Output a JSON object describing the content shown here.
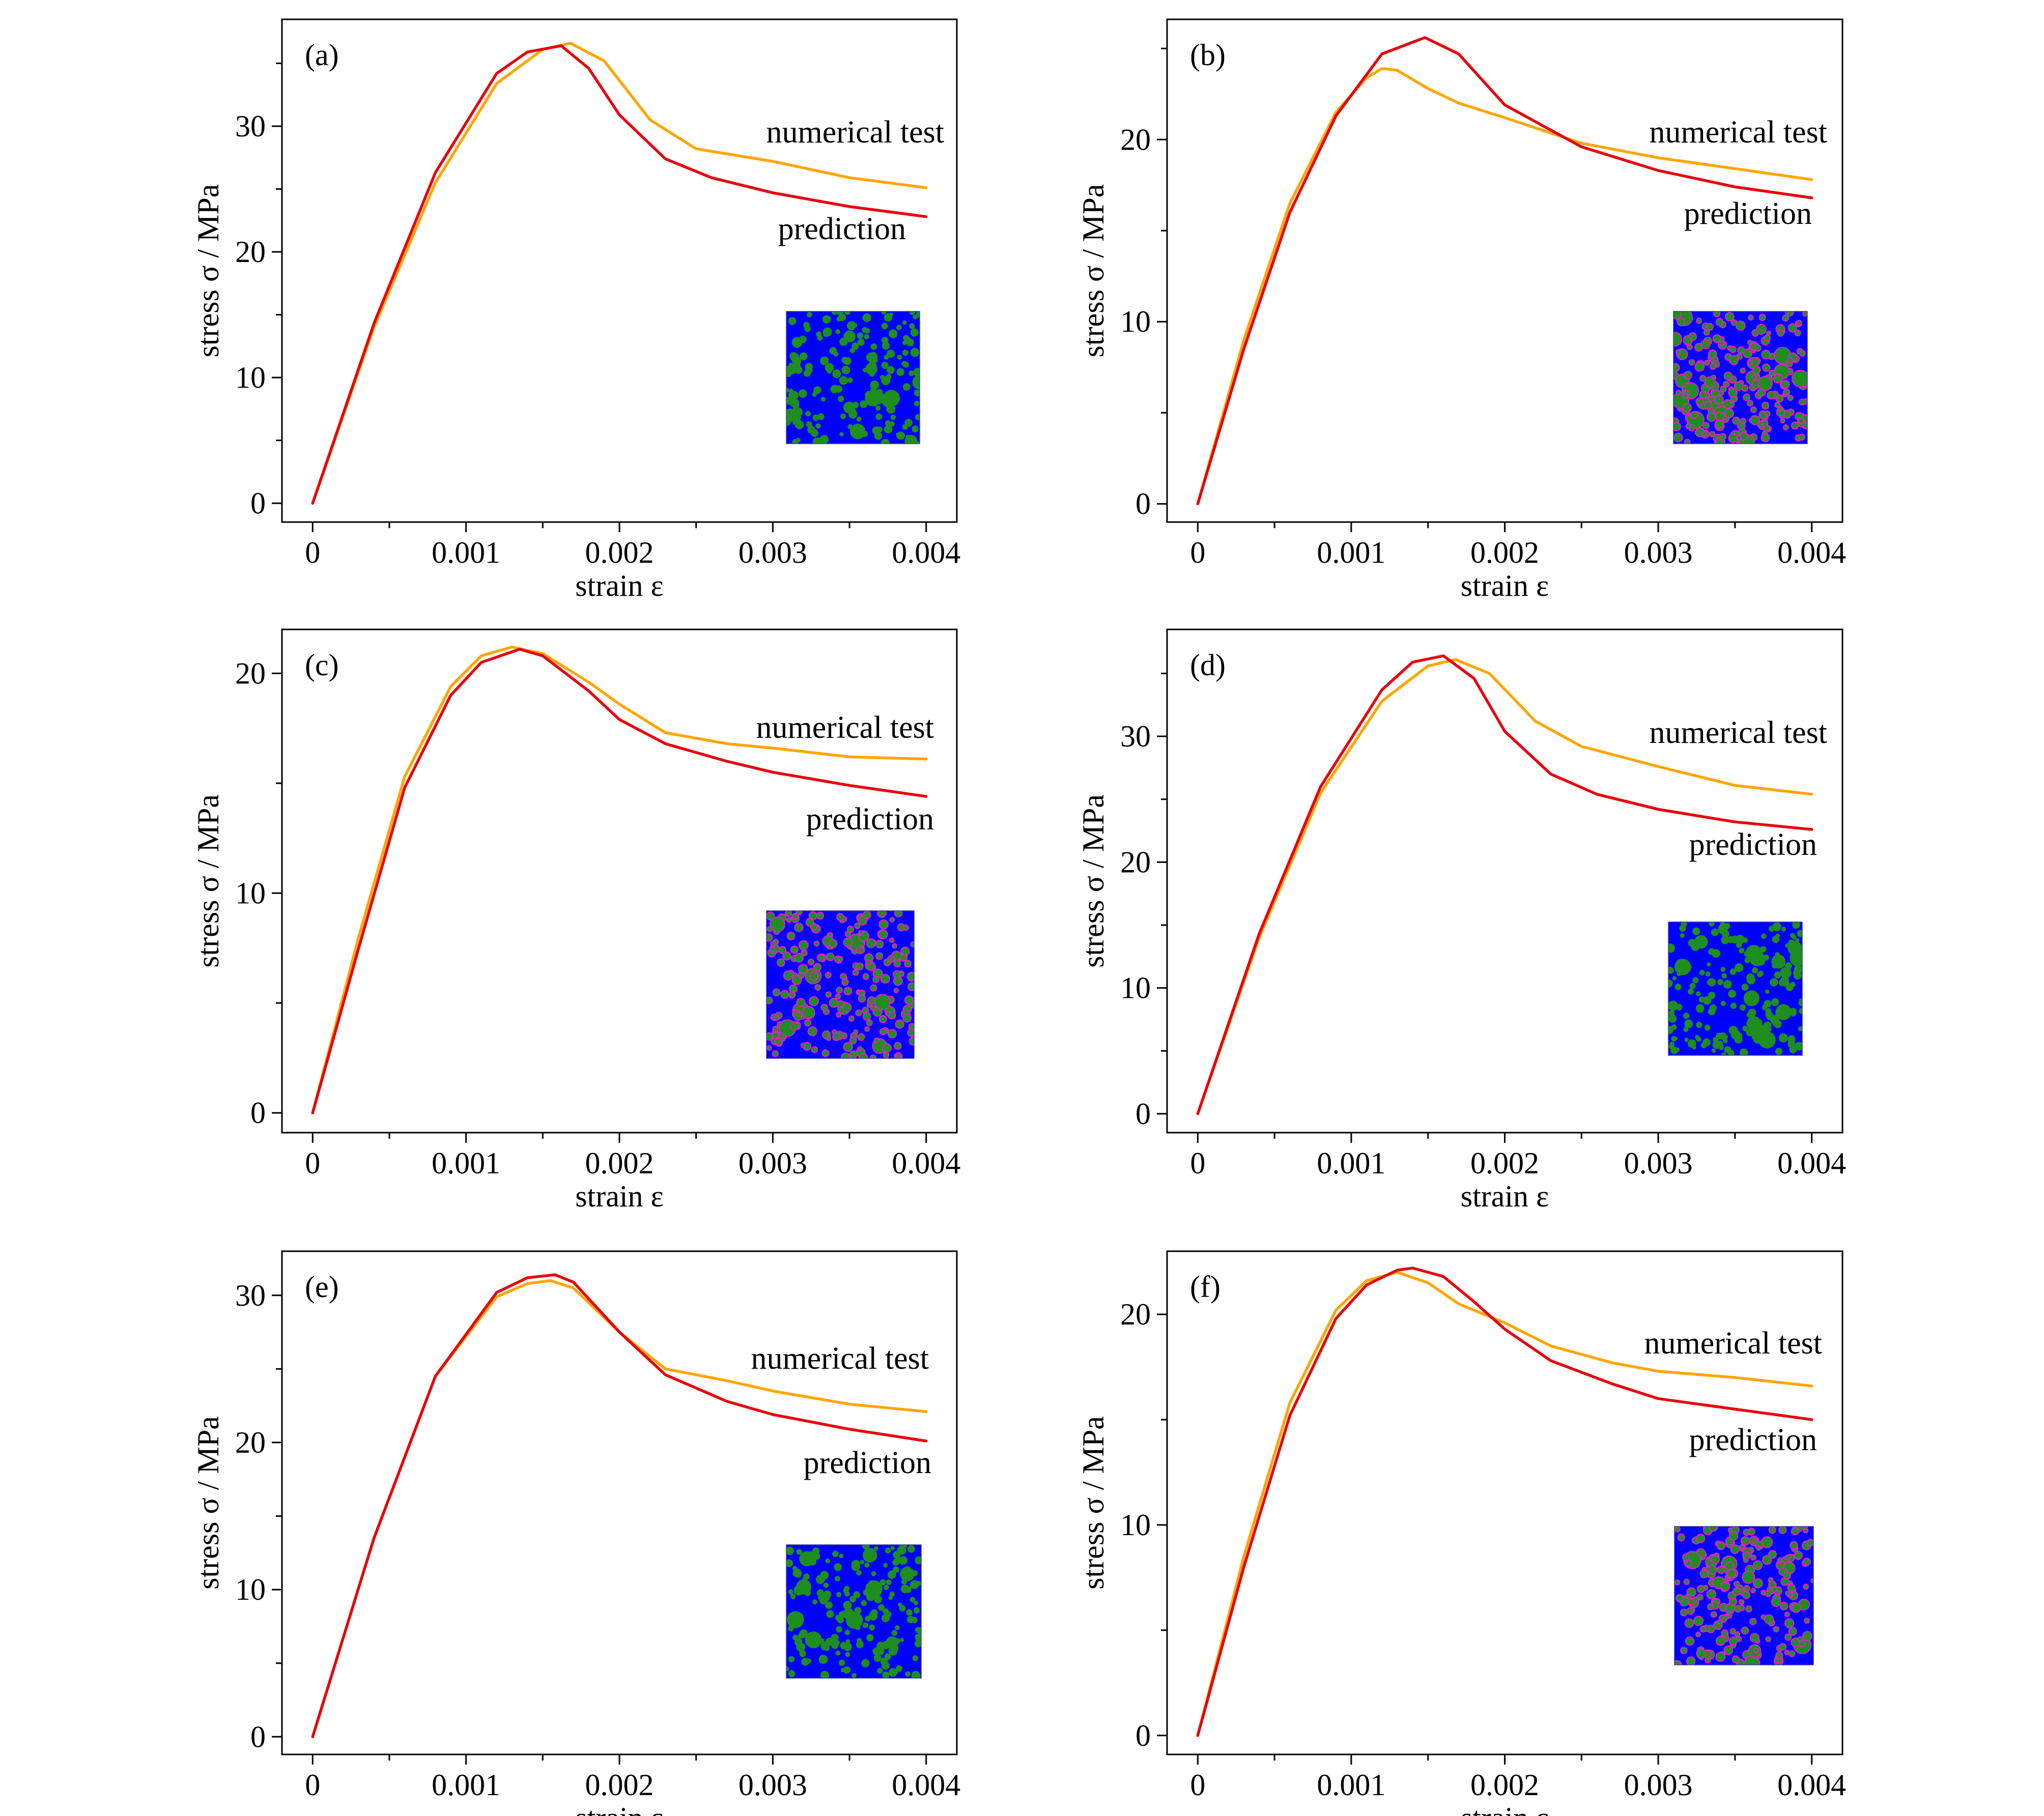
{
  "series_colors": {
    "numerical test": "#FFA500",
    "prediction": "#E8000B"
  },
  "inset_colors": {
    "matrix": "#0000FF",
    "aggregate": "#1E8E1E",
    "interface": "#E020C8"
  },
  "chart_data": [
    {
      "type": "line",
      "panel_label": "(a)",
      "xlabel": "strain ε",
      "ylabel": "stress σ / MPa",
      "xlim": [
        -0.0002,
        0.0042
      ],
      "ylim": [
        -1.5,
        38.5
      ],
      "x_ticks": [
        0,
        0.001,
        0.002,
        0.003,
        0.004
      ],
      "x_tick_labels": [
        "0",
        "0.001",
        "0.002",
        "0.003",
        "0.004"
      ],
      "y_ticks": [
        0,
        10,
        20,
        30
      ],
      "y_tick_labels": [
        "0",
        "10",
        "20",
        "30"
      ],
      "grid": false,
      "inset_style": "blue matrix",
      "series": [
        {
          "name": "numerical test",
          "x": [
            0,
            0.0004,
            0.0008,
            0.0012,
            0.0015,
            0.00168,
            0.0019,
            0.0022,
            0.0025,
            0.003,
            0.0035,
            0.004
          ],
          "y": [
            0,
            14,
            25.5,
            33.4,
            36.1,
            36.6,
            35.2,
            30.5,
            28.2,
            27.2,
            25.9,
            25.1
          ]
        },
        {
          "name": "prediction",
          "x": [
            0,
            0.0004,
            0.0008,
            0.0012,
            0.0014,
            0.00162,
            0.0018,
            0.002,
            0.0023,
            0.0026,
            0.003,
            0.0035,
            0.004
          ],
          "y": [
            0,
            14.3,
            26.3,
            34.2,
            35.9,
            36.4,
            34.6,
            30.9,
            27.4,
            25.9,
            24.7,
            23.6,
            22.8
          ]
        }
      ]
    },
    {
      "type": "line",
      "panel_label": "(b)",
      "xlabel": "strain ε",
      "ylabel": "stress σ / MPa",
      "xlim": [
        -0.0002,
        0.0042
      ],
      "ylim": [
        -1,
        26.6
      ],
      "x_ticks": [
        0,
        0.001,
        0.002,
        0.003,
        0.004
      ],
      "x_tick_labels": [
        "0",
        "0.001",
        "0.002",
        "0.003",
        "0.004"
      ],
      "y_ticks": [
        0,
        10,
        20
      ],
      "y_tick_labels": [
        "0",
        "10",
        "20"
      ],
      "grid": false,
      "inset_style": "blue matrix with magenta interface",
      "series": [
        {
          "name": "numerical test",
          "x": [
            0,
            0.0003,
            0.0006,
            0.0009,
            0.0011,
            0.0012,
            0.0013,
            0.0015,
            0.0017,
            0.002,
            0.0025,
            0.003,
            0.0035,
            0.004
          ],
          "y": [
            0,
            9,
            16.5,
            21.5,
            23.4,
            23.9,
            23.8,
            22.8,
            22,
            21.2,
            19.8,
            19,
            18.4,
            17.8
          ]
        },
        {
          "name": "prediction",
          "x": [
            0,
            0.0003,
            0.0006,
            0.0009,
            0.0012,
            0.00148,
            0.0017,
            0.002,
            0.0025,
            0.003,
            0.0035,
            0.004
          ],
          "y": [
            0,
            8.5,
            16,
            21.3,
            24.7,
            25.6,
            24.7,
            21.9,
            19.6,
            18.3,
            17.4,
            16.8
          ]
        }
      ]
    },
    {
      "type": "line",
      "panel_label": "(c)",
      "xlabel": "strain ε",
      "ylabel": "stress σ / MPa",
      "xlim": [
        -0.0002,
        0.0042
      ],
      "ylim": [
        -0.9,
        22
      ],
      "x_ticks": [
        0,
        0.001,
        0.002,
        0.003,
        0.004
      ],
      "x_tick_labels": [
        "0",
        "0.001",
        "0.002",
        "0.003",
        "0.004"
      ],
      "y_ticks": [
        0,
        10,
        20
      ],
      "y_tick_labels": [
        "0",
        "10",
        "20"
      ],
      "grid": false,
      "inset_style": "blue matrix with magenta interface",
      "series": [
        {
          "name": "numerical test",
          "x": [
            0,
            0.0003,
            0.0006,
            0.0009,
            0.0011,
            0.0013,
            0.0015,
            0.0018,
            0.002,
            0.0023,
            0.0027,
            0.003,
            0.0035,
            0.004
          ],
          "y": [
            0,
            8,
            15.3,
            19.4,
            20.8,
            21.2,
            20.9,
            19.6,
            18.6,
            17.3,
            16.8,
            16.6,
            16.2,
            16.1
          ]
        },
        {
          "name": "prediction",
          "x": [
            0,
            0.0003,
            0.0006,
            0.0009,
            0.0011,
            0.00135,
            0.0015,
            0.0018,
            0.002,
            0.0023,
            0.0027,
            0.003,
            0.0035,
            0.004
          ],
          "y": [
            0,
            7.5,
            14.8,
            19,
            20.5,
            21.1,
            20.8,
            19.2,
            17.9,
            16.8,
            16,
            15.5,
            14.9,
            14.4
          ]
        }
      ]
    },
    {
      "type": "line",
      "panel_label": "(d)",
      "xlabel": "strain ε",
      "ylabel": "stress σ / MPa",
      "xlim": [
        -0.0002,
        0.0042
      ],
      "ylim": [
        -1.5,
        38.5
      ],
      "x_ticks": [
        0,
        0.001,
        0.002,
        0.003,
        0.004
      ],
      "x_tick_labels": [
        "0",
        "0.001",
        "0.002",
        "0.003",
        "0.004"
      ],
      "y_ticks": [
        0,
        10,
        20,
        30
      ],
      "y_tick_labels": [
        "0",
        "10",
        "20",
        "30"
      ],
      "grid": false,
      "inset_style": "blue matrix",
      "series": [
        {
          "name": "numerical test",
          "x": [
            0,
            0.0004,
            0.0008,
            0.0012,
            0.0015,
            0.00168,
            0.0019,
            0.0022,
            0.0025,
            0.003,
            0.0035,
            0.004
          ],
          "y": [
            0,
            14,
            25.5,
            32.8,
            35.6,
            36.1,
            35,
            31.2,
            29.2,
            27.6,
            26.1,
            25.4
          ]
        },
        {
          "name": "prediction",
          "x": [
            0,
            0.0004,
            0.0008,
            0.0012,
            0.0014,
            0.0016,
            0.0018,
            0.002,
            0.0023,
            0.0026,
            0.003,
            0.0035,
            0.004
          ],
          "y": [
            0,
            14.3,
            26,
            33.7,
            35.9,
            36.4,
            34.6,
            30.4,
            27,
            25.4,
            24.2,
            23.2,
            22.6
          ]
        }
      ]
    },
    {
      "type": "line",
      "panel_label": "(e)",
      "xlabel": "strain ε",
      "ylabel": "stress σ / MPa",
      "xlim": [
        -0.0002,
        0.0042
      ],
      "ylim": [
        -1.2,
        33
      ],
      "x_ticks": [
        0,
        0.001,
        0.002,
        0.003,
        0.004
      ],
      "x_tick_labels": [
        "0",
        "0.001",
        "0.002",
        "0.003",
        "0.004"
      ],
      "y_ticks": [
        0,
        10,
        20,
        30
      ],
      "y_tick_labels": [
        "0",
        "10",
        "20",
        "30"
      ],
      "grid": false,
      "inset_style": "blue matrix",
      "series": [
        {
          "name": "numerical test",
          "x": [
            0,
            0.0004,
            0.0008,
            0.0012,
            0.0014,
            0.00155,
            0.0017,
            0.002,
            0.0023,
            0.0027,
            0.003,
            0.0035,
            0.004
          ],
          "y": [
            0,
            13.5,
            24.5,
            29.9,
            30.8,
            31,
            30.5,
            27.5,
            25,
            24.2,
            23.5,
            22.6,
            22.1
          ]
        },
        {
          "name": "prediction",
          "x": [
            0,
            0.0004,
            0.0008,
            0.0012,
            0.0014,
            0.00158,
            0.0017,
            0.002,
            0.0023,
            0.0027,
            0.003,
            0.0035,
            0.004
          ],
          "y": [
            0,
            13.5,
            24.5,
            30.2,
            31.2,
            31.4,
            30.9,
            27.5,
            24.6,
            22.8,
            21.9,
            20.9,
            20.1
          ]
        }
      ]
    },
    {
      "type": "line",
      "panel_label": "(f)",
      "xlabel": "strain ε",
      "ylabel": "stress σ / MPa",
      "xlim": [
        -0.0002,
        0.0042
      ],
      "ylim": [
        -0.9,
        23
      ],
      "x_ticks": [
        0,
        0.001,
        0.002,
        0.003,
        0.004
      ],
      "x_tick_labels": [
        "0",
        "0.001",
        "0.002",
        "0.003",
        "0.004"
      ],
      "y_ticks": [
        0,
        10,
        20
      ],
      "y_tick_labels": [
        "0",
        "10",
        "20"
      ],
      "grid": false,
      "inset_style": "blue matrix with magenta interface",
      "series": [
        {
          "name": "numerical test",
          "x": [
            0,
            0.0003,
            0.0006,
            0.0009,
            0.0011,
            0.0013,
            0.0015,
            0.0017,
            0.002,
            0.0023,
            0.0027,
            0.003,
            0.0035,
            0.004
          ],
          "y": [
            0,
            8.5,
            15.8,
            20.2,
            21.6,
            22,
            21.5,
            20.5,
            19.6,
            18.5,
            17.7,
            17.3,
            17,
            16.6
          ]
        },
        {
          "name": "prediction",
          "x": [
            0,
            0.0003,
            0.0006,
            0.0009,
            0.0011,
            0.0013,
            0.0014,
            0.0016,
            0.0018,
            0.002,
            0.0023,
            0.0027,
            0.003,
            0.0035,
            0.004
          ],
          "y": [
            0,
            8,
            15.2,
            19.8,
            21.4,
            22.1,
            22.2,
            21.8,
            20.6,
            19.3,
            17.8,
            16.7,
            16,
            15.5,
            15
          ]
        }
      ]
    }
  ]
}
